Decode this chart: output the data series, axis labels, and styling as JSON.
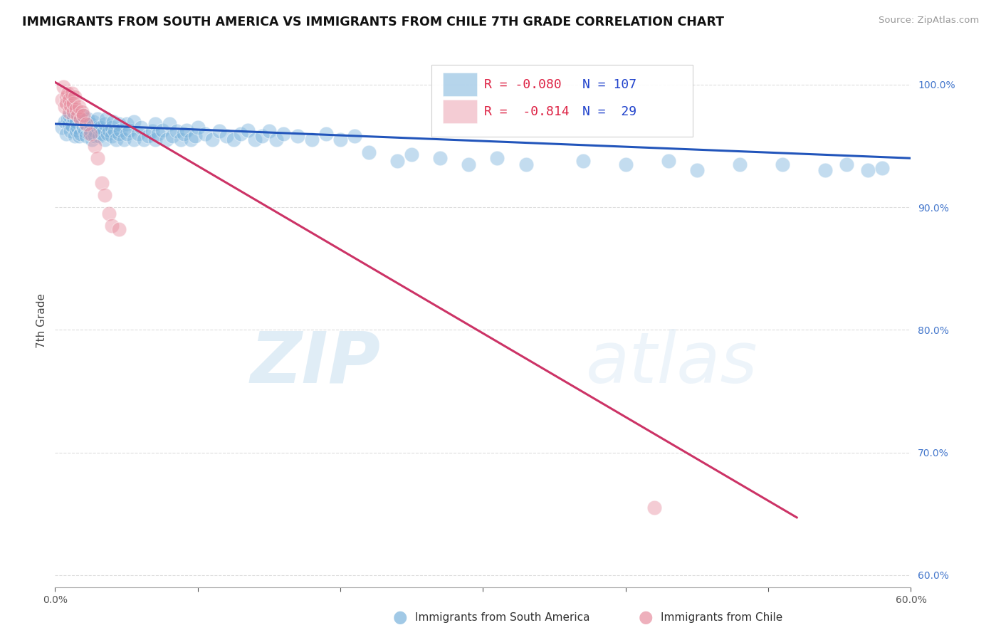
{
  "title": "IMMIGRANTS FROM SOUTH AMERICA VS IMMIGRANTS FROM CHILE 7TH GRADE CORRELATION CHART",
  "source": "Source: ZipAtlas.com",
  "ylabel": "7th Grade",
  "xlim": [
    0.0,
    0.6
  ],
  "ylim": [
    0.59,
    1.025
  ],
  "yticks": [
    0.6,
    0.7,
    0.8,
    0.9,
    1.0
  ],
  "yticklabels": [
    "60.0%",
    "70.0%",
    "80.0%",
    "90.0%",
    "100.0%"
  ],
  "xtick_left_label": "0.0%",
  "xtick_right_label": "60.0%",
  "blue_color": "#7ab3dc",
  "pink_color": "#e88fa0",
  "blue_line_color": "#2255bb",
  "pink_line_color": "#cc3366",
  "watermark_zip": "ZIP",
  "watermark_atlas": "atlas",
  "legend_R_blue": "R = -0.080",
  "legend_N_blue": "N = 107",
  "legend_R_pink": "R =  -0.814",
  "legend_N_pink": "N =  29",
  "blue_scatter_x": [
    0.005,
    0.007,
    0.008,
    0.009,
    0.01,
    0.01,
    0.011,
    0.012,
    0.013,
    0.014,
    0.015,
    0.015,
    0.016,
    0.017,
    0.018,
    0.018,
    0.019,
    0.02,
    0.02,
    0.021,
    0.022,
    0.022,
    0.023,
    0.024,
    0.025,
    0.025,
    0.026,
    0.027,
    0.028,
    0.028,
    0.03,
    0.03,
    0.031,
    0.032,
    0.033,
    0.035,
    0.035,
    0.036,
    0.037,
    0.038,
    0.04,
    0.04,
    0.041,
    0.042,
    0.043,
    0.045,
    0.045,
    0.046,
    0.048,
    0.05,
    0.05,
    0.052,
    0.055,
    0.055,
    0.058,
    0.06,
    0.062,
    0.065,
    0.068,
    0.07,
    0.07,
    0.072,
    0.075,
    0.078,
    0.08,
    0.082,
    0.085,
    0.088,
    0.09,
    0.092,
    0.095,
    0.098,
    0.1,
    0.105,
    0.11,
    0.115,
    0.12,
    0.125,
    0.13,
    0.135,
    0.14,
    0.145,
    0.15,
    0.155,
    0.16,
    0.17,
    0.18,
    0.19,
    0.2,
    0.21,
    0.22,
    0.24,
    0.25,
    0.27,
    0.29,
    0.31,
    0.33,
    0.37,
    0.4,
    0.43,
    0.45,
    0.48,
    0.51,
    0.54,
    0.555,
    0.57,
    0.58
  ],
  "blue_scatter_y": [
    0.965,
    0.97,
    0.96,
    0.972,
    0.968,
    0.975,
    0.962,
    0.967,
    0.973,
    0.958,
    0.963,
    0.97,
    0.965,
    0.958,
    0.972,
    0.96,
    0.968,
    0.965,
    0.975,
    0.962,
    0.967,
    0.958,
    0.972,
    0.96,
    0.968,
    0.963,
    0.955,
    0.97,
    0.962,
    0.958,
    0.965,
    0.972,
    0.958,
    0.965,
    0.96,
    0.968,
    0.955,
    0.972,
    0.96,
    0.963,
    0.965,
    0.958,
    0.97,
    0.962,
    0.955,
    0.968,
    0.96,
    0.963,
    0.955,
    0.968,
    0.96,
    0.963,
    0.97,
    0.955,
    0.96,
    0.965,
    0.955,
    0.958,
    0.962,
    0.968,
    0.955,
    0.96,
    0.963,
    0.955,
    0.968,
    0.958,
    0.962,
    0.955,
    0.96,
    0.963,
    0.955,
    0.958,
    0.965,
    0.96,
    0.955,
    0.962,
    0.958,
    0.955,
    0.96,
    0.963,
    0.955,
    0.958,
    0.962,
    0.955,
    0.96,
    0.958,
    0.955,
    0.96,
    0.955,
    0.958,
    0.945,
    0.938,
    0.943,
    0.94,
    0.935,
    0.94,
    0.935,
    0.938,
    0.935,
    0.938,
    0.93,
    0.935,
    0.935,
    0.93,
    0.935,
    0.93,
    0.932
  ],
  "pink_scatter_x": [
    0.005,
    0.006,
    0.007,
    0.008,
    0.008,
    0.009,
    0.01,
    0.01,
    0.011,
    0.012,
    0.013,
    0.013,
    0.014,
    0.015,
    0.016,
    0.017,
    0.018,
    0.019,
    0.02,
    0.022,
    0.025,
    0.028,
    0.03,
    0.033,
    0.035,
    0.038,
    0.04,
    0.42,
    0.045
  ],
  "pink_scatter_y": [
    0.988,
    0.998,
    0.982,
    0.99,
    0.985,
    0.993,
    0.978,
    0.988,
    0.983,
    0.993,
    0.978,
    0.985,
    0.99,
    0.98,
    0.975,
    0.982,
    0.972,
    0.978,
    0.975,
    0.968,
    0.96,
    0.95,
    0.94,
    0.92,
    0.91,
    0.895,
    0.885,
    0.655,
    0.882
  ],
  "blue_trend_x": [
    0.0,
    0.6
  ],
  "blue_trend_y": [
    0.968,
    0.94
  ],
  "pink_trend_x": [
    0.0,
    0.52
  ],
  "pink_trend_y": [
    1.002,
    0.647
  ],
  "grid_color": "#dddddd",
  "background_color": "#ffffff"
}
